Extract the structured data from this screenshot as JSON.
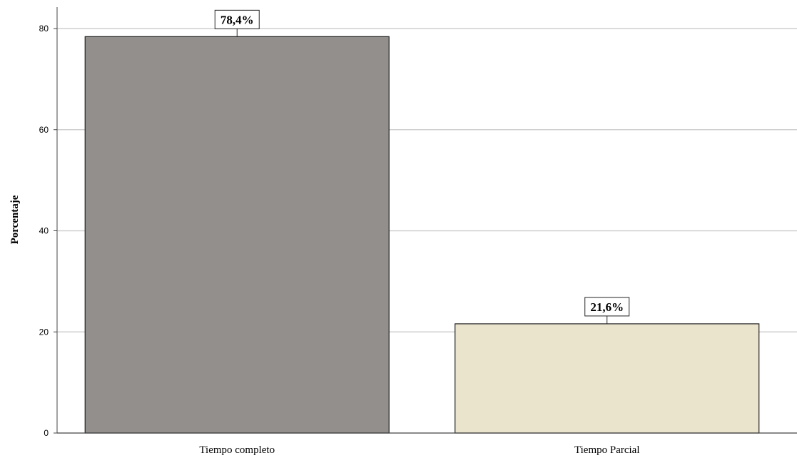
{
  "chart_data": {
    "type": "bar",
    "categories": [
      "Tiempo completo",
      "Tiempo Parcial"
    ],
    "values": [
      78.4,
      21.6
    ],
    "data_labels": [
      "78,4%",
      "21,6%"
    ],
    "bar_colors": [
      "#928f8d",
      "#ebe4cc"
    ],
    "ylabel": "Porcentaje",
    "xlabel": "",
    "ylim": [
      0,
      80
    ],
    "yticks": [
      0,
      20,
      40,
      60,
      80
    ],
    "ytick_labels": [
      "0",
      "20",
      "40",
      "60",
      "80"
    ],
    "grid": true,
    "legend": "none"
  }
}
